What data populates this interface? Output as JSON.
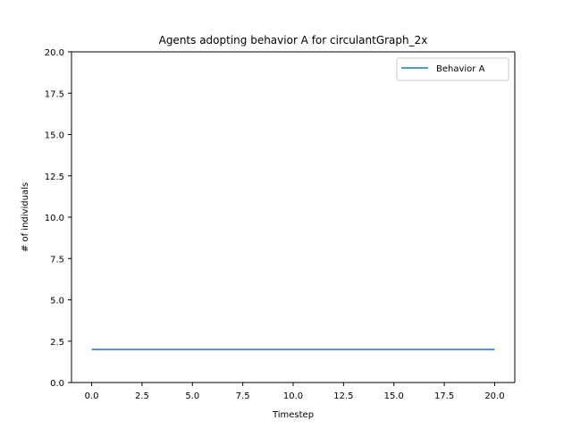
{
  "chart_data": {
    "type": "line",
    "title": "Agents adopting behavior A for circulantGraph_2x",
    "xlabel": "Timestep",
    "ylabel": "# of individuals",
    "xlim": [
      -1,
      21
    ],
    "ylim": [
      0,
      20
    ],
    "xticks": [
      0.0,
      2.5,
      5.0,
      7.5,
      10.0,
      12.5,
      15.0,
      17.5,
      20.0
    ],
    "xtick_labels": [
      "0.0",
      "2.5",
      "5.0",
      "7.5",
      "10.0",
      "12.5",
      "15.0",
      "17.5",
      "20.0"
    ],
    "yticks": [
      0.0,
      2.5,
      5.0,
      7.5,
      10.0,
      12.5,
      15.0,
      17.5,
      20.0
    ],
    "ytick_labels": [
      "0.0",
      "2.5",
      "5.0",
      "7.5",
      "10.0",
      "12.5",
      "15.0",
      "17.5",
      "20.0"
    ],
    "grid": false,
    "legend_position": "top-right",
    "series": [
      {
        "name": "Behavior A",
        "color": "#1f77b4",
        "x": [
          0,
          1,
          2,
          3,
          4,
          5,
          6,
          7,
          8,
          9,
          10,
          11,
          12,
          13,
          14,
          15,
          16,
          17,
          18,
          19,
          20
        ],
        "values": [
          2,
          2,
          2,
          2,
          2,
          2,
          2,
          2,
          2,
          2,
          2,
          2,
          2,
          2,
          2,
          2,
          2,
          2,
          2,
          2,
          2
        ]
      }
    ]
  }
}
